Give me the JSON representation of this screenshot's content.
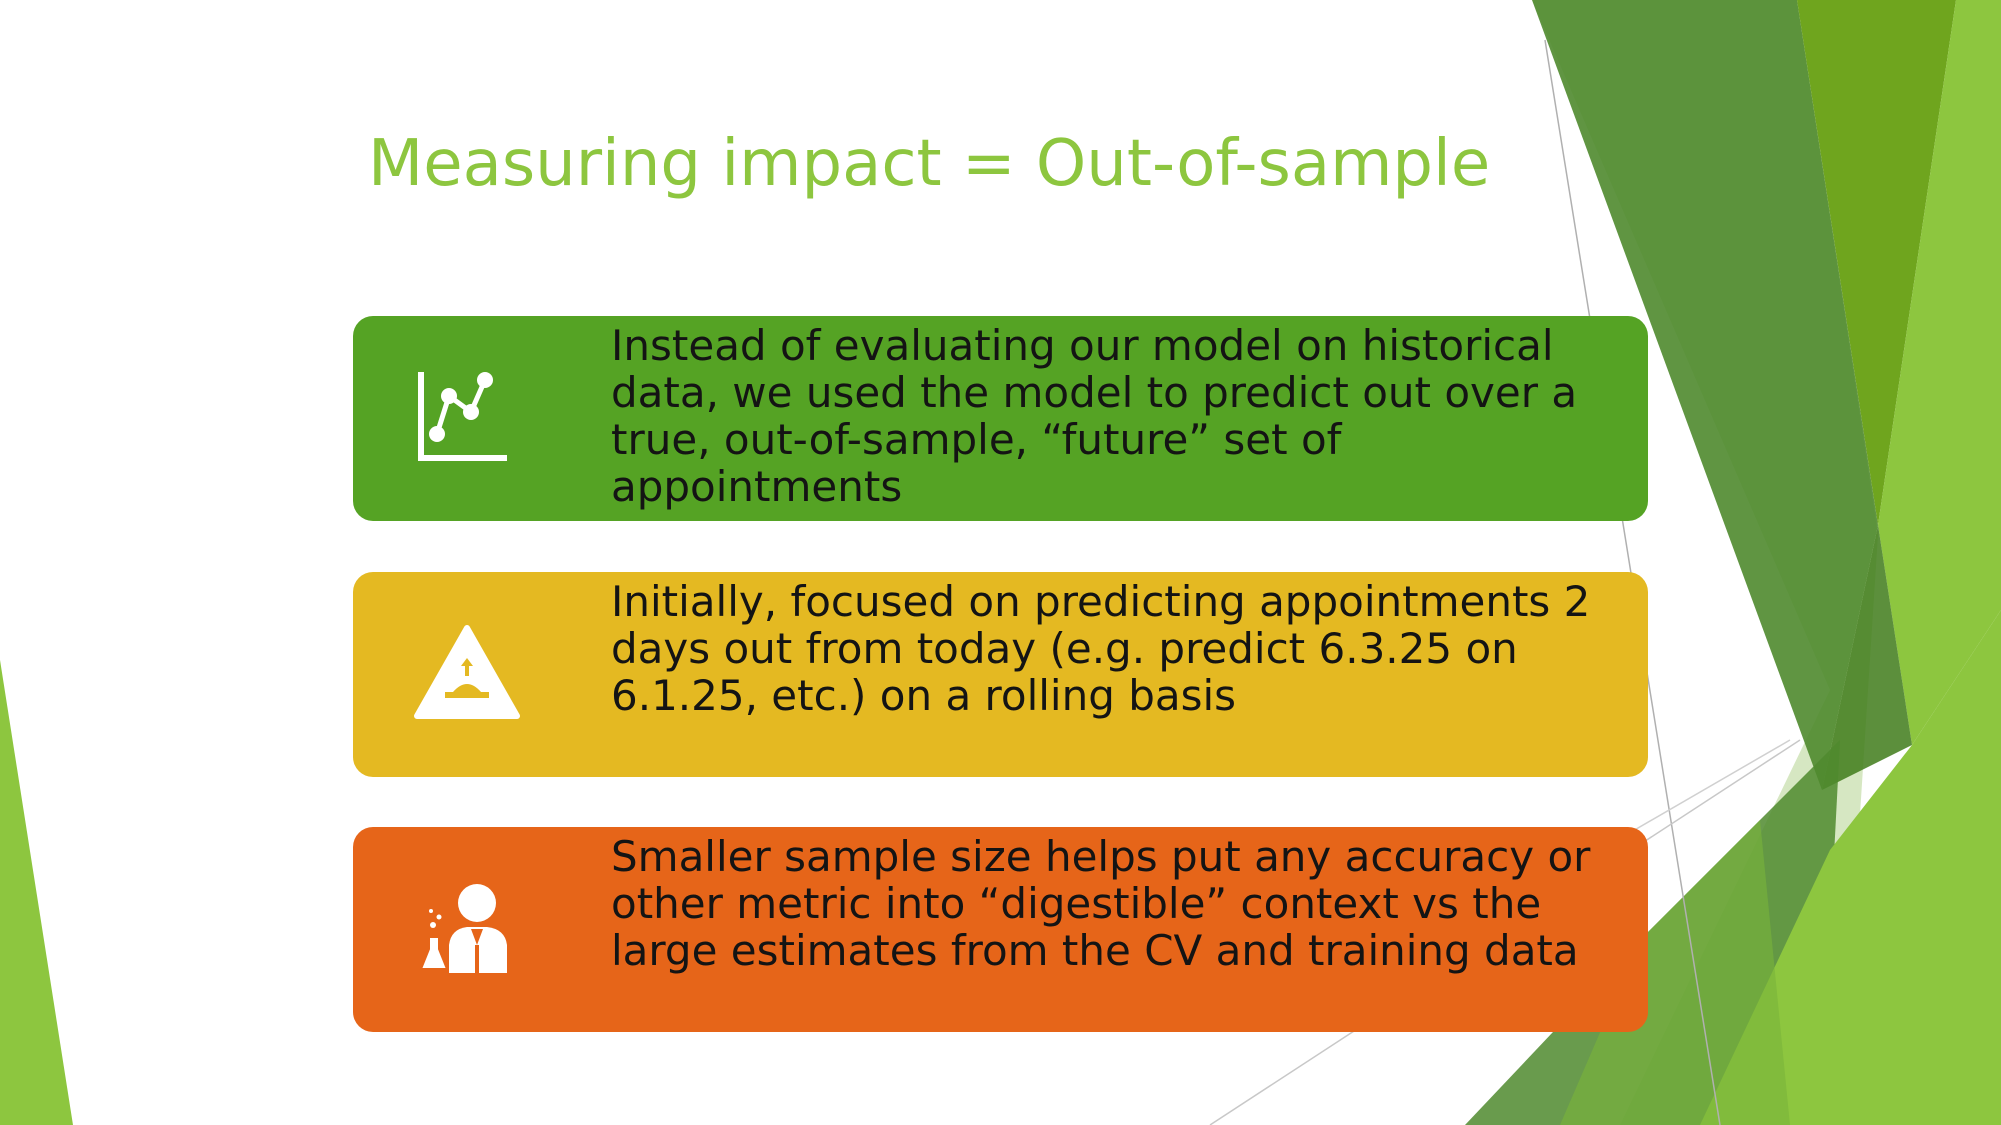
{
  "slide": {
    "title": "Measuring impact = Out-of-sample",
    "cards": [
      {
        "text": "Instead of evaluating our model on historical data, we used the model to predict out over a true, out-of-sample, “future” set of appointments",
        "color": "#55a324",
        "icon": "line-chart-icon"
      },
      {
        "text": "Initially, focused on predicting appointments 2 days out from today (e.g. predict 6.3.25 on 6.1.25, etc.) on a rolling basis",
        "color": "#e4b922",
        "icon": "warning-triangle-icon"
      },
      {
        "text": "Smaller sample size helps put any accuracy or other metric into “digestible” context vs the large estimates from the CV and training data",
        "color": "#e66519",
        "icon": "scientist-icon"
      }
    ],
    "colors": {
      "title": "#8dc63f",
      "shapes": [
        "#8dc63f",
        "#4f8a2e",
        "#6fa51e",
        "#3f7b1a"
      ]
    }
  }
}
